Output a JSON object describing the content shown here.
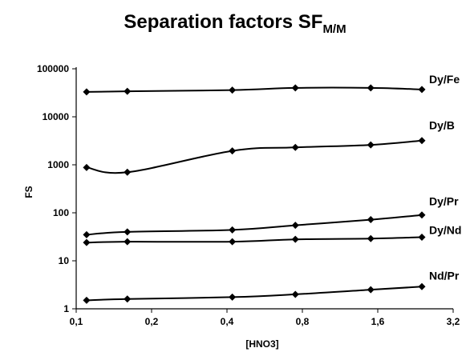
{
  "chart_data": {
    "type": "line",
    "title_main": "Separation factors SF",
    "title_sub": "M/M",
    "xlabel": "[HNO3]",
    "ylabel": "FS",
    "x_scale": "log2",
    "y_scale": "log10",
    "xlim": [
      0.1,
      3.2
    ],
    "ylim": [
      1,
      100000
    ],
    "x_ticks": [
      0.1,
      0.2,
      0.4,
      0.8,
      1.6,
      3.2
    ],
    "x_tick_labels": [
      "0,1",
      "0,2",
      "0,4",
      "0,8",
      "1,6",
      "3,2"
    ],
    "y_ticks": [
      1,
      10,
      100,
      1000,
      10000,
      100000
    ],
    "y_tick_labels": [
      "1",
      "10",
      "100",
      "1000",
      "10000",
      "100000"
    ],
    "x": [
      0.11,
      0.16,
      0.42,
      0.75,
      1.5,
      2.4
    ],
    "series": [
      {
        "name": "Dy/Fe",
        "values": [
          33000,
          34000,
          36000,
          40000,
          40000,
          37000
        ]
      },
      {
        "name": "Dy/B",
        "values": [
          880,
          700,
          1950,
          2300,
          2600,
          3200
        ]
      },
      {
        "name": "Dy/Pr",
        "values": [
          35,
          40,
          44,
          55,
          72,
          90
        ]
      },
      {
        "name": "Dy/Nd",
        "values": [
          24,
          25,
          25,
          28,
          29,
          31
        ]
      },
      {
        "name": "Nd/Pr",
        "values": [
          1.5,
          1.6,
          1.75,
          2.0,
          2.5,
          2.9
        ]
      }
    ],
    "grid": false,
    "marker": "diamond",
    "line_color": "#000000",
    "legend": "direct labels at right end of each line"
  }
}
